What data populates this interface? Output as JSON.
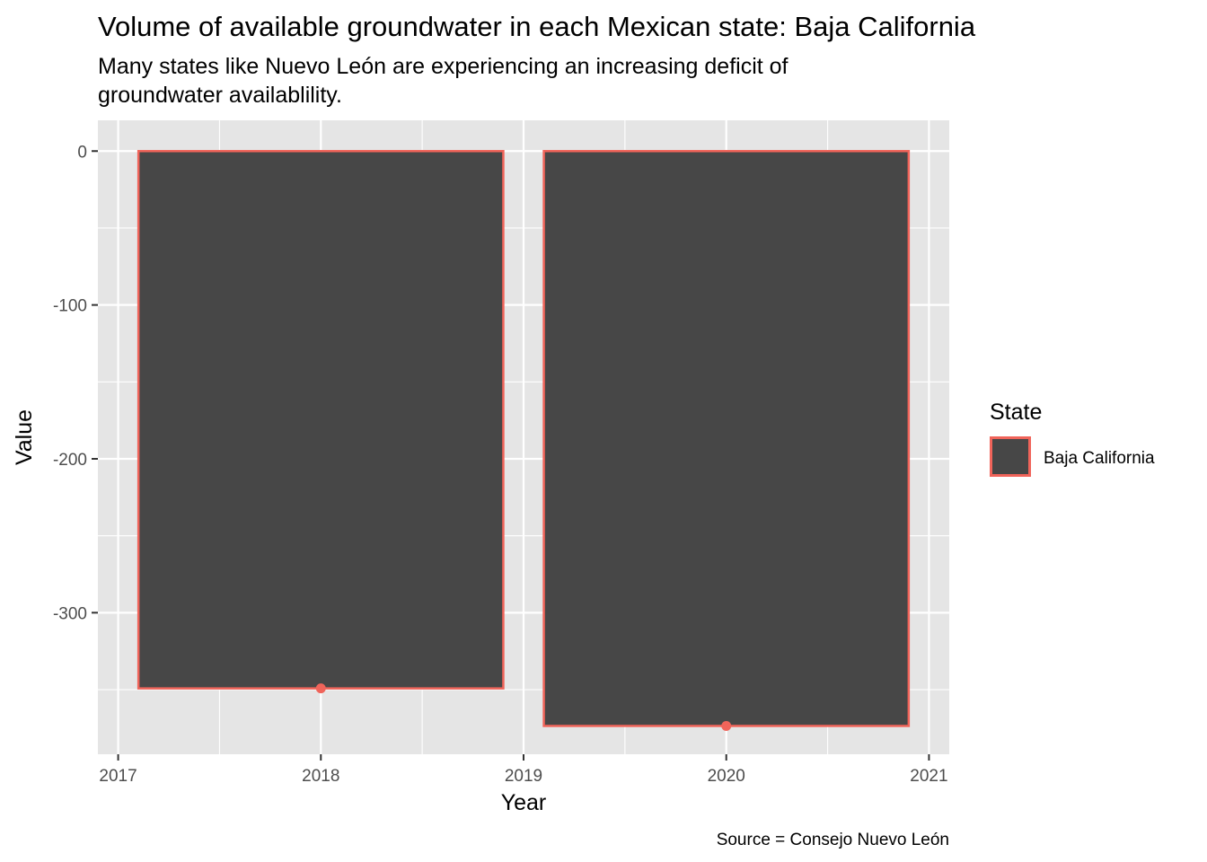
{
  "chart_data": {
    "type": "bar",
    "title": "Volume of available groundwater in each Mexican state: Baja California",
    "subtitle_lines": [
      "Many states like Nuevo León are experiencing an increasing deficit of",
      "groundwater availablility."
    ],
    "xlabel": "Year",
    "ylabel": "Value",
    "caption": "Source = Consejo Nuevo León",
    "x": [
      2018,
      2020
    ],
    "series": [
      {
        "name": "Baja California",
        "values": [
          -349.2,
          -373.6
        ]
      }
    ],
    "xlim": [
      2016.9,
      2021.1
    ],
    "ylim": [
      -392,
      20
    ],
    "x_ticks": [
      2017,
      2018,
      2019,
      2020,
      2021
    ],
    "x_tick_labels": [
      "2017",
      "2018",
      "2019",
      "2020",
      "2021"
    ],
    "y_ticks": [
      0,
      -100,
      -200,
      -300
    ],
    "y_tick_labels": [
      "0",
      "-100",
      "-200",
      "-300"
    ],
    "bar_width_years": 1.8,
    "point_markers": true,
    "grid": true,
    "legend": {
      "title": "State",
      "placement": "right",
      "items": [
        "Baja California"
      ]
    },
    "colors": {
      "panel": "#e5e5e5",
      "grid": "#ffffff",
      "bar_fill": "#474747",
      "bar_outline": "#f0645a",
      "point": "#f0645a",
      "tick_text": "#4d4d4d"
    }
  }
}
